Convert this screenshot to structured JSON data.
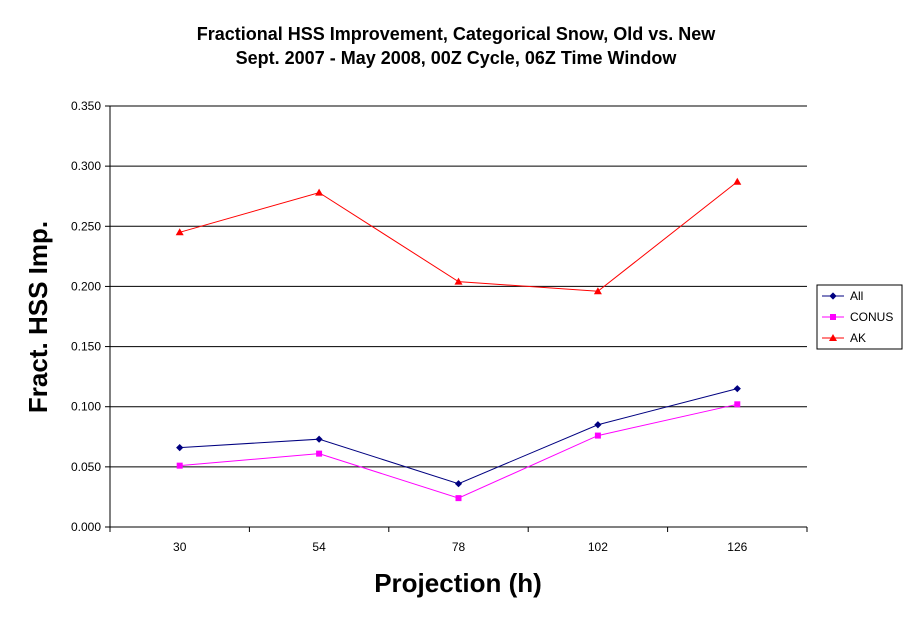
{
  "chart_data": {
    "type": "line",
    "title": "Fractional HSS Improvement, Categorical Snow, Old vs. New",
    "subtitle": "Sept. 2007 - May 2008, 00Z Cycle, 06Z Time Window",
    "xlabel": "Projection (h)",
    "ylabel": "Fract. HSS Imp.",
    "categories": [
      "30",
      "54",
      "78",
      "102",
      "126"
    ],
    "ylim": [
      0,
      0.35
    ],
    "yticks": [
      "0.000",
      "0.050",
      "0.100",
      "0.150",
      "0.200",
      "0.250",
      "0.300",
      "0.350"
    ],
    "grid": true,
    "legend_position": "right",
    "series": [
      {
        "name": "All",
        "color": "#000080",
        "marker": "diamond",
        "values": [
          0.066,
          0.073,
          0.036,
          0.085,
          0.115
        ]
      },
      {
        "name": "CONUS",
        "color": "#ff00ff",
        "marker": "square",
        "values": [
          0.051,
          0.061,
          0.024,
          0.076,
          0.102
        ]
      },
      {
        "name": "AK",
        "color": "#ff0000",
        "marker": "triangle",
        "values": [
          0.245,
          0.278,
          0.204,
          0.196,
          0.287
        ]
      }
    ]
  }
}
